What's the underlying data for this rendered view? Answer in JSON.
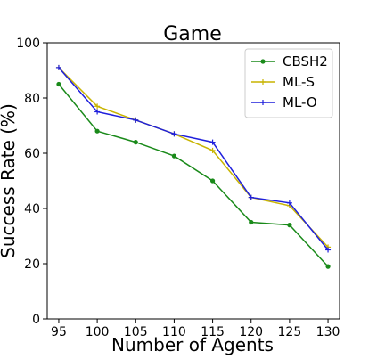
{
  "chart_data": {
    "type": "line",
    "title": "Game",
    "xlabel": "Number of Agents",
    "ylabel": "Success Rate (%)",
    "x": [
      95,
      100,
      105,
      110,
      115,
      120,
      125,
      130
    ],
    "xlim": [
      93.5,
      131.5
    ],
    "ylim": [
      0,
      100
    ],
    "xticks": [
      95,
      100,
      105,
      110,
      115,
      120,
      125,
      130
    ],
    "yticks": [
      0,
      20,
      40,
      60,
      80,
      100
    ],
    "grid": false,
    "legend_position": "top-right",
    "series": [
      {
        "name": "CBSH2",
        "color": "#1a8a1a",
        "marker": "circle",
        "values": [
          85,
          68,
          64,
          59,
          50,
          35,
          34,
          19
        ]
      },
      {
        "name": "ML-S",
        "color": "#c8b400",
        "marker": "plus",
        "values": [
          91,
          77,
          72,
          67,
          61,
          44,
          41,
          26
        ]
      },
      {
        "name": "ML-O",
        "color": "#1f1fdc",
        "marker": "plus",
        "values": [
          91,
          75,
          72,
          67,
          64,
          44,
          42,
          25
        ]
      }
    ]
  }
}
